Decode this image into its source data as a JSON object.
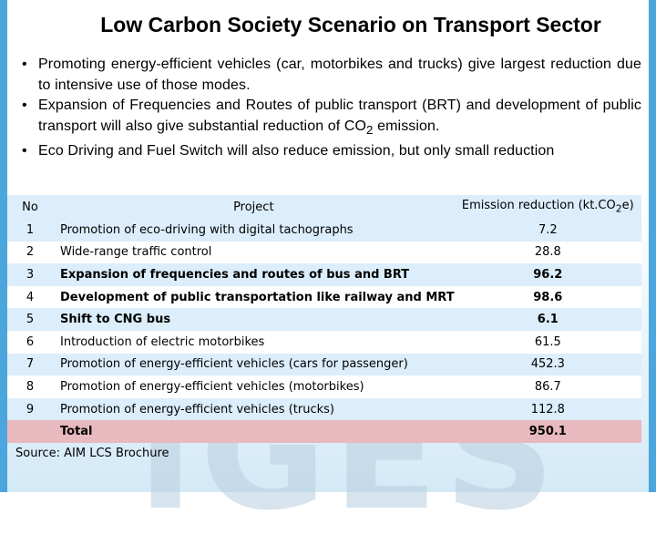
{
  "title": "Low Carbon Society Scenario on Transport Sector",
  "bullets": [
    "Promoting energy-efficient vehicles (car, motorbikes and trucks) give largest reduction due to intensive use of those modes.",
    "Expansion of Frequencies and Routes of public transport (BRT) and development of public transport will also give substantial reduction of CO",
    "Eco Driving and Fuel Switch will also reduce emission, but only small reduction"
  ],
  "bullet2_sub": "2",
  "bullet2_tail": " emission.",
  "table": {
    "headers": {
      "no": "No",
      "project": "Project",
      "value": "Emission reduction (kt.CO",
      "value_sub": "2",
      "value_tail": "e)"
    },
    "rows": [
      {
        "no": "1",
        "project": "Promotion of eco-driving with digital tachographs",
        "value": "7.2"
      },
      {
        "no": "2",
        "project": "Wide-range traffic control",
        "value": "28.8"
      },
      {
        "no": "3",
        "project": "Expansion of frequencies and routes of bus and BRT",
        "value": "96.2"
      },
      {
        "no": "4",
        "project": "Development of public transportation like railway and MRT",
        "value": "98.6"
      },
      {
        "no": "5",
        "project": "Shift to CNG bus",
        "value": "6.1"
      },
      {
        "no": "6",
        "project": "Introduction of electric motorbikes",
        "value": "61.5"
      },
      {
        "no": "7",
        "project": "Promotion of energy-efficient vehicles (cars for passenger)",
        "value": "452.3"
      },
      {
        "no": "8",
        "project": "Promotion of energy-efficient vehicles (motorbikes)",
        "value": "86.7"
      },
      {
        "no": "9",
        "project": "Promotion of energy-efficient vehicles (trucks)",
        "value": "112.8"
      }
    ],
    "total": {
      "label": "Total",
      "value": "950.1"
    }
  },
  "source": "Source: AIM LCS Brochure",
  "watermark": "IGES",
  "bullet_glyph": "•"
}
